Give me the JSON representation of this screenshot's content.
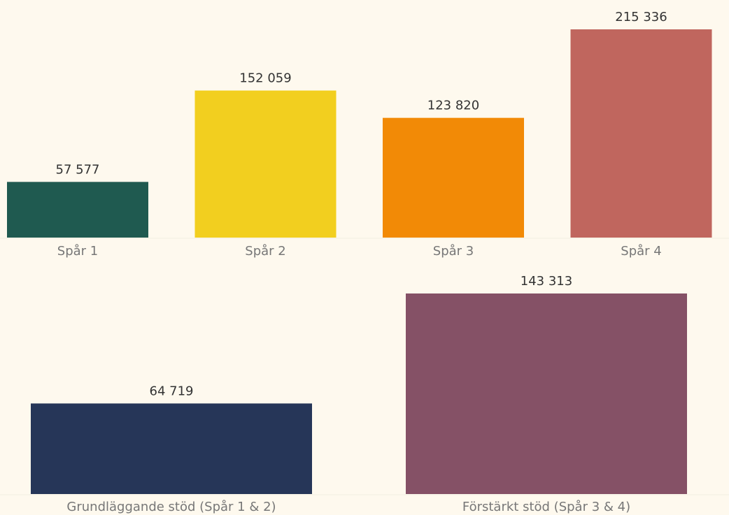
{
  "chart_data": [
    {
      "type": "bar",
      "categories": [
        "Spår 1",
        "Spår 2",
        "Spår 3",
        "Spår 4"
      ],
      "values": [
        57577,
        152059,
        123820,
        215336
      ],
      "value_labels": [
        "57 577",
        "152 059",
        "123 820",
        "215 336"
      ],
      "colors": [
        "#1f5a50",
        "#f2cf1f",
        "#f28a06",
        "#c0665e"
      ]
    },
    {
      "type": "bar",
      "categories": [
        "Grundläggande stöd (Spår 1 & 2)",
        "Förstärkt stöd (Spår 3 & 4)"
      ],
      "values": [
        64719,
        143313
      ],
      "value_labels": [
        "64 719",
        "143 313"
      ],
      "colors": [
        "#263658",
        "#855166"
      ]
    }
  ]
}
